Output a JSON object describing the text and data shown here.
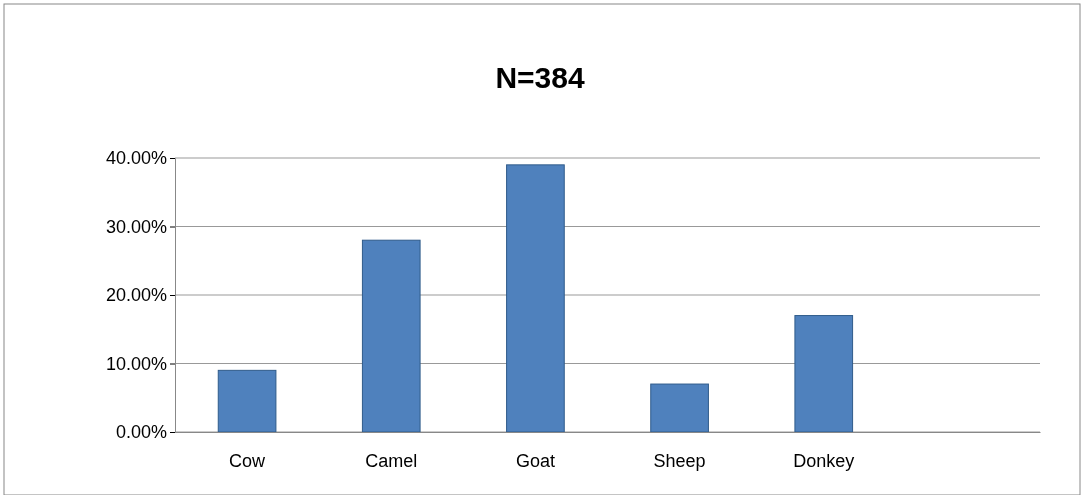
{
  "chart_data": {
    "type": "bar",
    "title": "N=384",
    "categories": [
      "Cow",
      "Camel",
      "Goat",
      "Sheep",
      "Donkey",
      null
    ],
    "values": [
      9,
      28,
      39,
      7,
      17,
      null
    ],
    "color": "#4f81bd",
    "ylim": [
      0,
      40
    ],
    "yticks": [
      {
        "value": 0,
        "label": "0.00%"
      },
      {
        "value": 10,
        "label": "10.00%"
      },
      {
        "value": 20,
        "label": "20.00%"
      },
      {
        "value": 30,
        "label": "30.00%"
      },
      {
        "value": 40,
        "label": "40.00%"
      }
    ],
    "grid": "y"
  }
}
